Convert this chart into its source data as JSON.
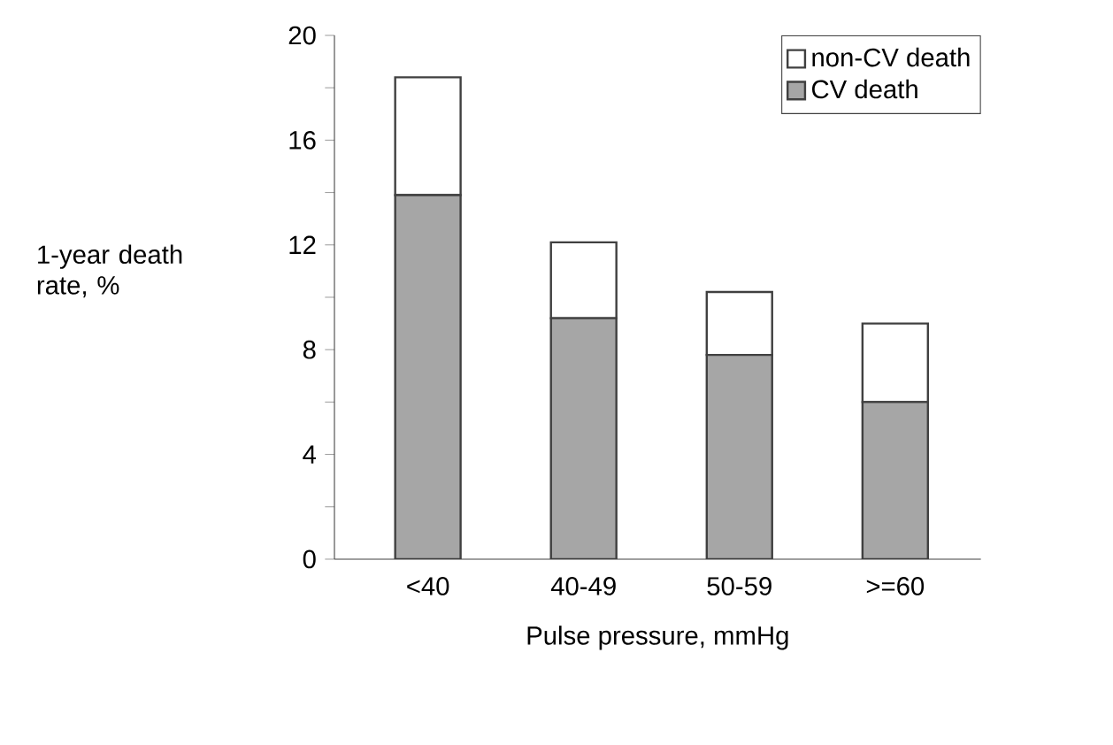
{
  "chart_data": {
    "type": "bar",
    "stacked": true,
    "xlabel": "Pulse pressure, mmHg",
    "ylabel": "1-year death rate, %",
    "categories": [
      "<40",
      "40-49",
      "50-59",
      ">=60"
    ],
    "series": [
      {
        "name": "CV death",
        "color": "#a6a6a6",
        "values": [
          13.9,
          9.2,
          7.8,
          6.0
        ]
      },
      {
        "name": "non-CV death",
        "color": "#ffffff",
        "values": [
          4.5,
          2.9,
          2.4,
          3.0
        ]
      }
    ],
    "ylim": [
      0,
      20
    ],
    "yticks": [
      0,
      {
        "value": 2,
        "label": null
      },
      4,
      {
        "value": 6,
        "label": null
      },
      8,
      {
        "value": 10,
        "label": null
      },
      12,
      {
        "value": 14,
        "label": null
      },
      16,
      {
        "value": 18,
        "label": null
      },
      20
    ],
    "legend": "top right"
  }
}
